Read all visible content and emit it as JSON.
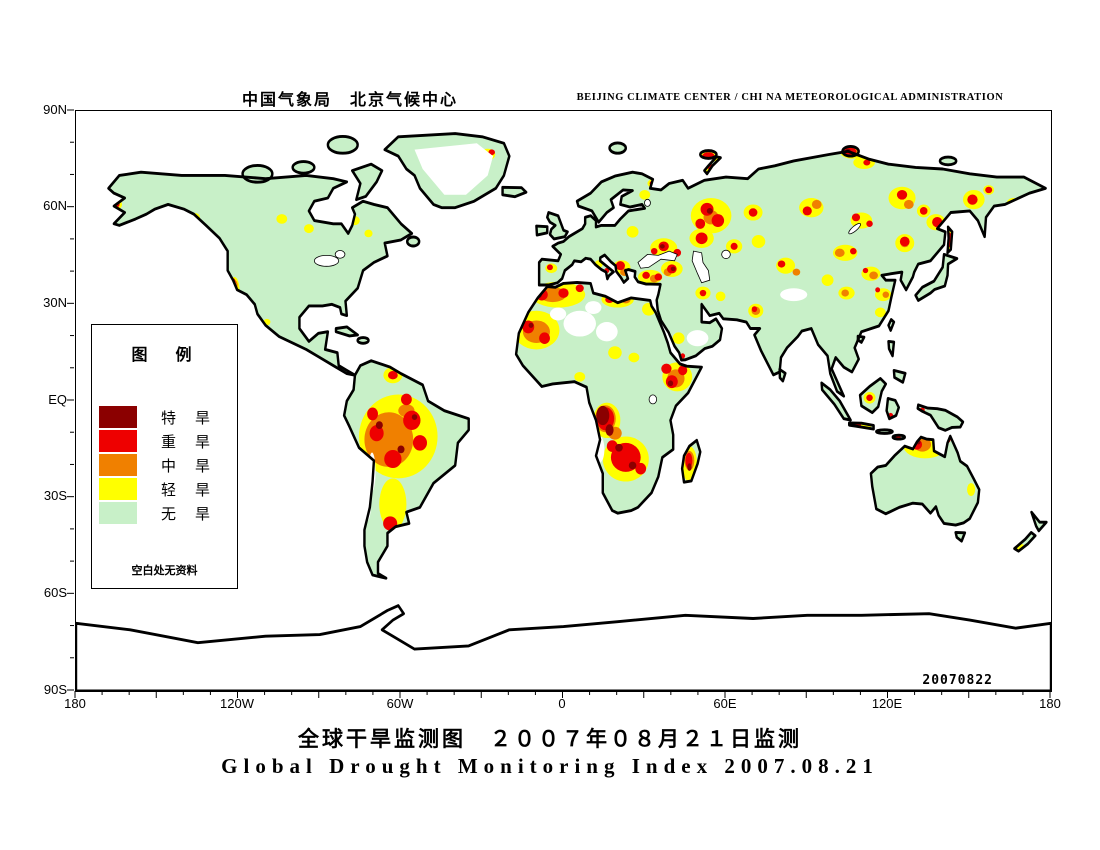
{
  "header": {
    "title_cn": "中国气象局　北京气候中心",
    "title_en": "BEIJING CLIMATE CENTER / CHI NA METEOROLOGICAL ADMINISTRATION"
  },
  "axes": {
    "lat": [
      "90N",
      "60N",
      "30N",
      "EQ",
      "30S",
      "60S",
      "90S"
    ],
    "lon": [
      "180",
      "120W",
      "60W",
      "0",
      "60E",
      "120E",
      "180"
    ]
  },
  "legend": {
    "title": "图　例",
    "items": [
      {
        "label": "特　旱",
        "level": "extreme",
        "color": "#8B0000"
      },
      {
        "label": "重　旱",
        "level": "severe",
        "color": "#EE0000"
      },
      {
        "label": "中　旱",
        "level": "moderate",
        "color": "#F08000"
      },
      {
        "label": "轻　旱",
        "level": "light",
        "color": "#FFFF00"
      },
      {
        "label": "无　旱",
        "level": "none",
        "color": "#C8F0C8"
      }
    ],
    "note": "空白处无资料"
  },
  "map": {
    "datestamp": "20070822",
    "projection": "equirectangular",
    "ocean_color": "#FFFFFF",
    "no_data_color": "#FFFFFF",
    "coastline_color": "#000000"
  },
  "footer": {
    "title_cn": "全球干旱监测图　２００７年０８月２１日监测",
    "title_en": "Global Drought Monitoring Index  2007.08.21"
  },
  "colors": {
    "drought-extreme": "#8B0000",
    "drought-severe": "#EE0000",
    "drought-moderate": "#F08000",
    "drought-light": "#FFFF00",
    "drought-none": "#C8F0C8"
  }
}
